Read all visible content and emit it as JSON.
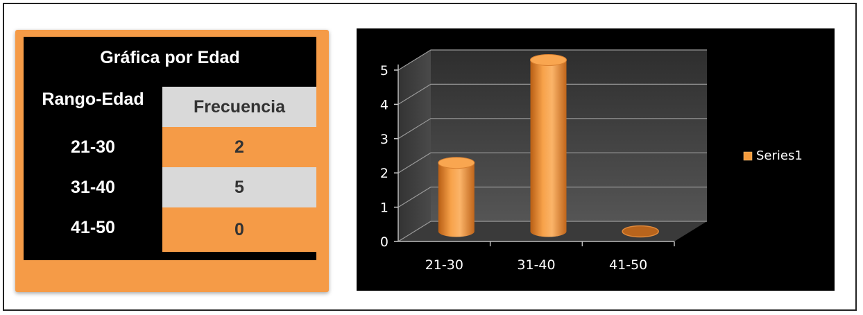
{
  "table": {
    "title": "Gráfica por Edad",
    "headers": [
      "Rango-Edad",
      "Frecuencia"
    ],
    "rows": [
      {
        "range": "21-30",
        "freq": "2"
      },
      {
        "range": "31-40",
        "freq": "5"
      },
      {
        "range": "41-50",
        "freq": "0"
      }
    ]
  },
  "colors": {
    "orange": "#f59b47",
    "gray_cell": "#d9d9d9",
    "bar": "#f39a3c",
    "background": "#000000"
  },
  "chart_data": {
    "type": "bar",
    "style": "3d-cylinder",
    "categories": [
      "21-30",
      "31-40",
      "41-50"
    ],
    "series": [
      {
        "name": "Series1",
        "values": [
          2,
          5,
          0
        ]
      }
    ],
    "ylim": [
      0,
      5
    ],
    "yticks": [
      "0",
      "1",
      "2",
      "3",
      "4",
      "5"
    ],
    "grid": true,
    "legend": "right"
  }
}
